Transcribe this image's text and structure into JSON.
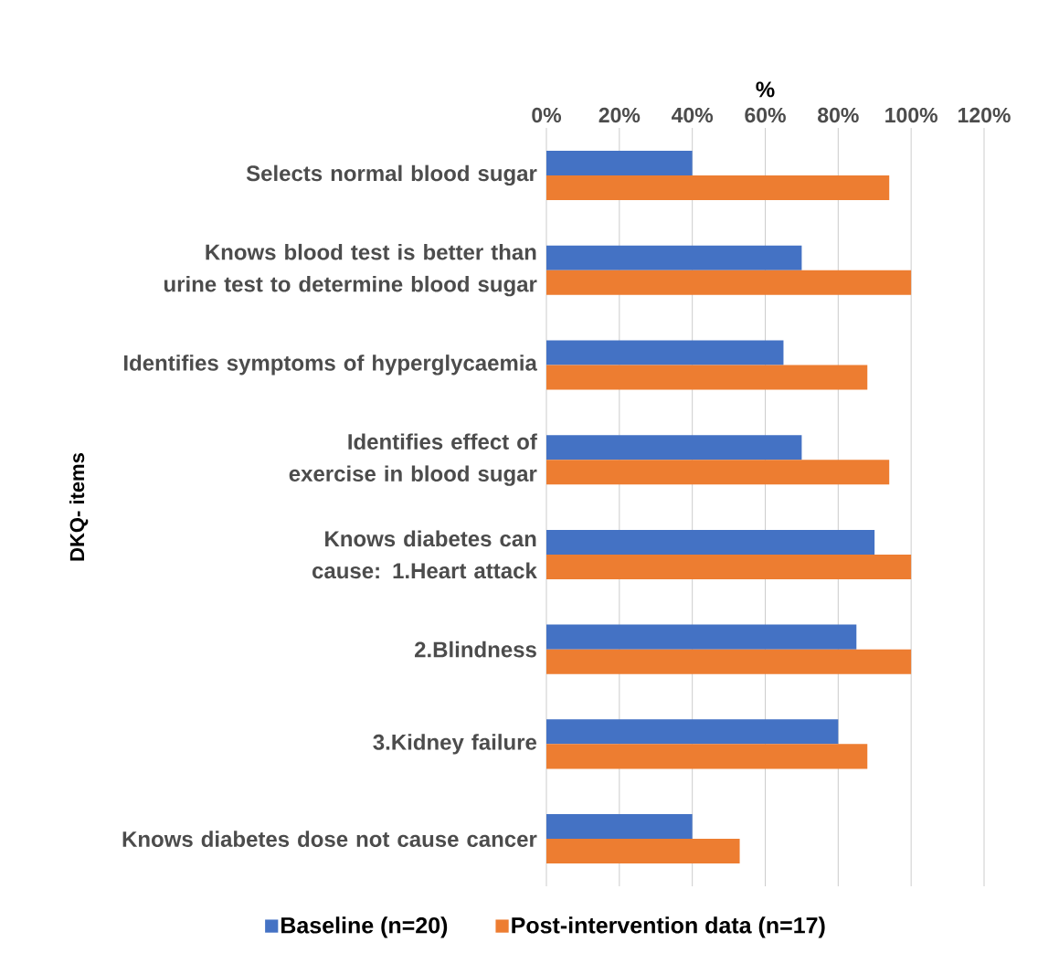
{
  "chart_data": {
    "type": "bar",
    "orientation": "horizontal",
    "xlabel": "%",
    "ylabel": "DKQ- items",
    "categories": [
      "Selects normal blood sugar",
      "Knows blood test is better than urine test to determine blood sugar",
      "Identifies symptoms of hyperglycaemia",
      "Identifies effect of exercise in blood sugar",
      "Knows diabetes can cause: 1.Heart attack",
      "2.Blindness",
      "3.Kidney failure",
      "Knows diabetes dose not cause cancer"
    ],
    "series": [
      {
        "name": "Baseline (n=20)",
        "color": "#4472c4",
        "values": [
          40,
          70,
          65,
          70,
          90,
          85,
          80,
          40
        ]
      },
      {
        "name": "Post-intervention data (n=17)",
        "color": "#ed7d31",
        "values": [
          94,
          100,
          88,
          94,
          100,
          100,
          88,
          53
        ]
      }
    ],
    "xlim": [
      0,
      120
    ],
    "xticks": [
      {
        "value": 0,
        "label": "0%"
      },
      {
        "value": 20,
        "label": "20%"
      },
      {
        "value": 40,
        "label": "40%"
      },
      {
        "value": 60,
        "label": "60%"
      },
      {
        "value": 80,
        "label": "80%"
      },
      {
        "value": 100,
        "label": "100%"
      },
      {
        "value": 120,
        "label": "120%"
      }
    ],
    "grid": "x",
    "legend": "bottom"
  }
}
